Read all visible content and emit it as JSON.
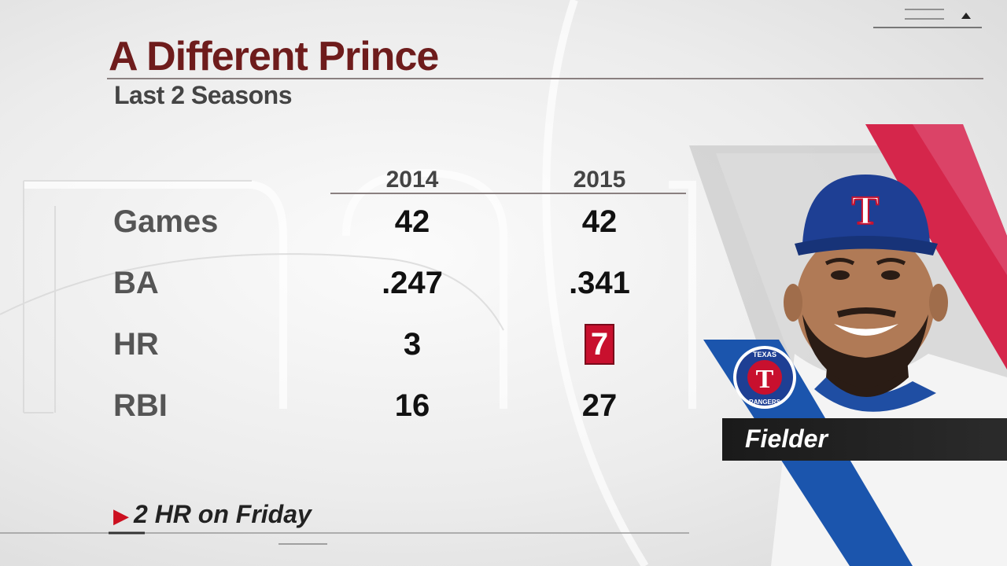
{
  "header": {
    "title": "A Different Prince",
    "subtitle": "Last 2 Seasons"
  },
  "table": {
    "columns": [
      "2014",
      "2015"
    ],
    "rows": [
      {
        "label": "Games",
        "values": [
          "42",
          "42"
        ]
      },
      {
        "label": "BA",
        "values": [
          ".247",
          ".341"
        ]
      },
      {
        "label": "HR",
        "values": [
          "3",
          "7"
        ]
      },
      {
        "label": "RBI",
        "values": [
          "16",
          "27"
        ]
      }
    ]
  },
  "footnote": {
    "text": "2 HR on Friday",
    "icon": "triangle-right-icon"
  },
  "player": {
    "name": "Fielder",
    "team_logo_top": "TEXAS",
    "team_logo_bottom": "RANGERS",
    "cap_letter": "T"
  },
  "colors": {
    "title": "#6e1c1c",
    "accent_red": "#c8102e",
    "team_blue": "#1b4fa0",
    "name_bar": "#1a1a1a"
  }
}
